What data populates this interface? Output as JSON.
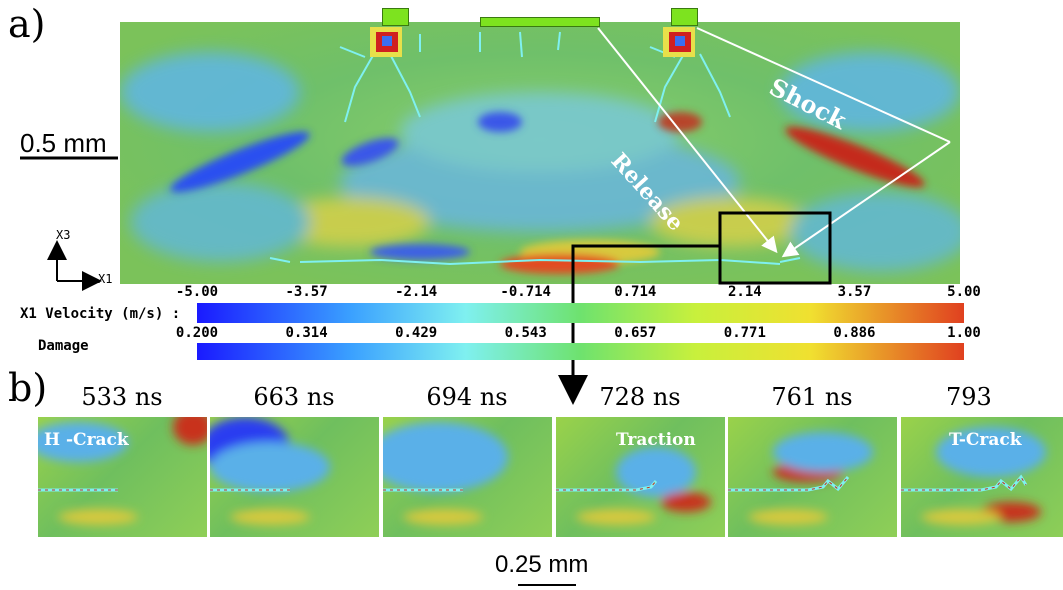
{
  "panel_a": {
    "label": "a)",
    "scale_bar": "0.5 mm",
    "axes": {
      "x": "X1",
      "y": "X3"
    },
    "annotations": {
      "release": "Release",
      "shock": "Shock"
    }
  },
  "colorbars": [
    {
      "title": "X1 Velocity (m/s) :",
      "ticks": [
        "-5.00",
        "-3.57",
        "-2.14",
        "-0.714",
        "0.714",
        "2.14",
        "3.57",
        "5.00"
      ]
    },
    {
      "title": "Damage",
      "ticks": [
        "0.200",
        "0.314",
        "0.429",
        "0.543",
        "0.657",
        "0.771",
        "0.886",
        "1.00"
      ]
    }
  ],
  "panel_b": {
    "label": "b)",
    "scale_bar": "0.25 mm",
    "frames": [
      {
        "time": "533 ns",
        "annotation": "H -Crack"
      },
      {
        "time": "663 ns",
        "annotation": ""
      },
      {
        "time": "694 ns",
        "annotation": ""
      },
      {
        "time": "728 ns",
        "annotation": "Traction"
      },
      {
        "time": "761 ns",
        "annotation": ""
      },
      {
        "time": "793 ns",
        "annotation": "T-Crack"
      }
    ]
  },
  "colors": {
    "field_green": "#7cc45a",
    "field_blue": "#3a6ff0",
    "field_red": "#c8321e",
    "field_yellow": "#d9d84a",
    "crack_cyan": "#7ff0f0"
  }
}
